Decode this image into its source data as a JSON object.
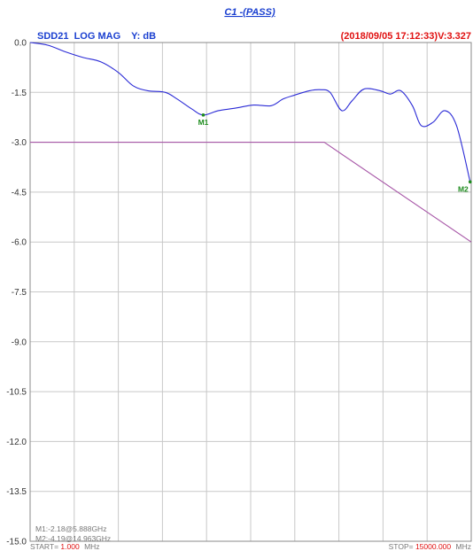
{
  "chart_data": {
    "type": "line",
    "title": "C1 -(PASS)",
    "trace_label": "SDD21  LOG MAG    Y: dB",
    "timestamp": "(2018/09/05 17:12:33)V:3.327",
    "x_unit": "GHz",
    "xlim": [
      0.001,
      15
    ],
    "ylim": [
      -15.0,
      0.0
    ],
    "y_ticks": [
      "0.0",
      "-1.5",
      "-3.0",
      "-4.5",
      "-6.0",
      "-7.5",
      "-9.0",
      "-10.5",
      "-12.0",
      "-13.5",
      "-15.0"
    ],
    "x_grid_divisions": 10,
    "grid": true,
    "series": [
      {
        "values": [
          [
            0.0,
            0.0
          ],
          [
            0.6,
            -0.08
          ],
          [
            1.2,
            -0.28
          ],
          [
            1.8,
            -0.45
          ],
          [
            2.4,
            -0.58
          ],
          [
            3.0,
            -0.9
          ],
          [
            3.5,
            -1.3
          ],
          [
            4.0,
            -1.45
          ],
          [
            4.6,
            -1.5
          ],
          [
            5.0,
            -1.7
          ],
          [
            5.5,
            -2.0
          ],
          [
            5.888,
            -2.18
          ],
          [
            6.4,
            -2.05
          ],
          [
            7.0,
            -1.97
          ],
          [
            7.6,
            -1.88
          ],
          [
            8.2,
            -1.9
          ],
          [
            8.6,
            -1.7
          ],
          [
            9.0,
            -1.58
          ],
          [
            9.5,
            -1.45
          ],
          [
            9.9,
            -1.42
          ],
          [
            10.2,
            -1.5
          ],
          [
            10.6,
            -2.05
          ],
          [
            10.95,
            -1.75
          ],
          [
            11.35,
            -1.4
          ],
          [
            11.9,
            -1.45
          ],
          [
            12.25,
            -1.55
          ],
          [
            12.6,
            -1.45
          ],
          [
            13.0,
            -1.9
          ],
          [
            13.3,
            -2.5
          ],
          [
            13.7,
            -2.4
          ],
          [
            14.1,
            -2.05
          ],
          [
            14.5,
            -2.5
          ],
          [
            14.963,
            -4.19
          ]
        ],
        "color": "#2b2bd6"
      },
      {
        "values": [
          [
            0.0,
            -3.0
          ],
          [
            10.0,
            -3.0
          ],
          [
            15.0,
            -6.0
          ]
        ],
        "color": "#a858a8"
      }
    ],
    "markers": [
      {
        "label": "M1",
        "x": 5.888,
        "y": -2.18
      },
      {
        "label": "M2",
        "x": 14.963,
        "y": -4.19
      }
    ],
    "marker_readout": [
      "M1:-2.18@5.888GHz",
      "M2:-4.19@14.963GHz"
    ],
    "start": {
      "prefix": "START=",
      "value": "1.000",
      "unit": "MHz"
    },
    "stop": {
      "prefix": "STOP=",
      "value": "15000.000",
      "unit": "MHz"
    }
  },
  "colors": {
    "title": "#1a3fd0",
    "trace_label": "#1a3fd0",
    "timestamp": "#e01010",
    "marker": "#1e8c1e",
    "grid": "#c8c8c8",
    "frame": "#8a8a8a",
    "start_stop_value": "#e01010"
  }
}
